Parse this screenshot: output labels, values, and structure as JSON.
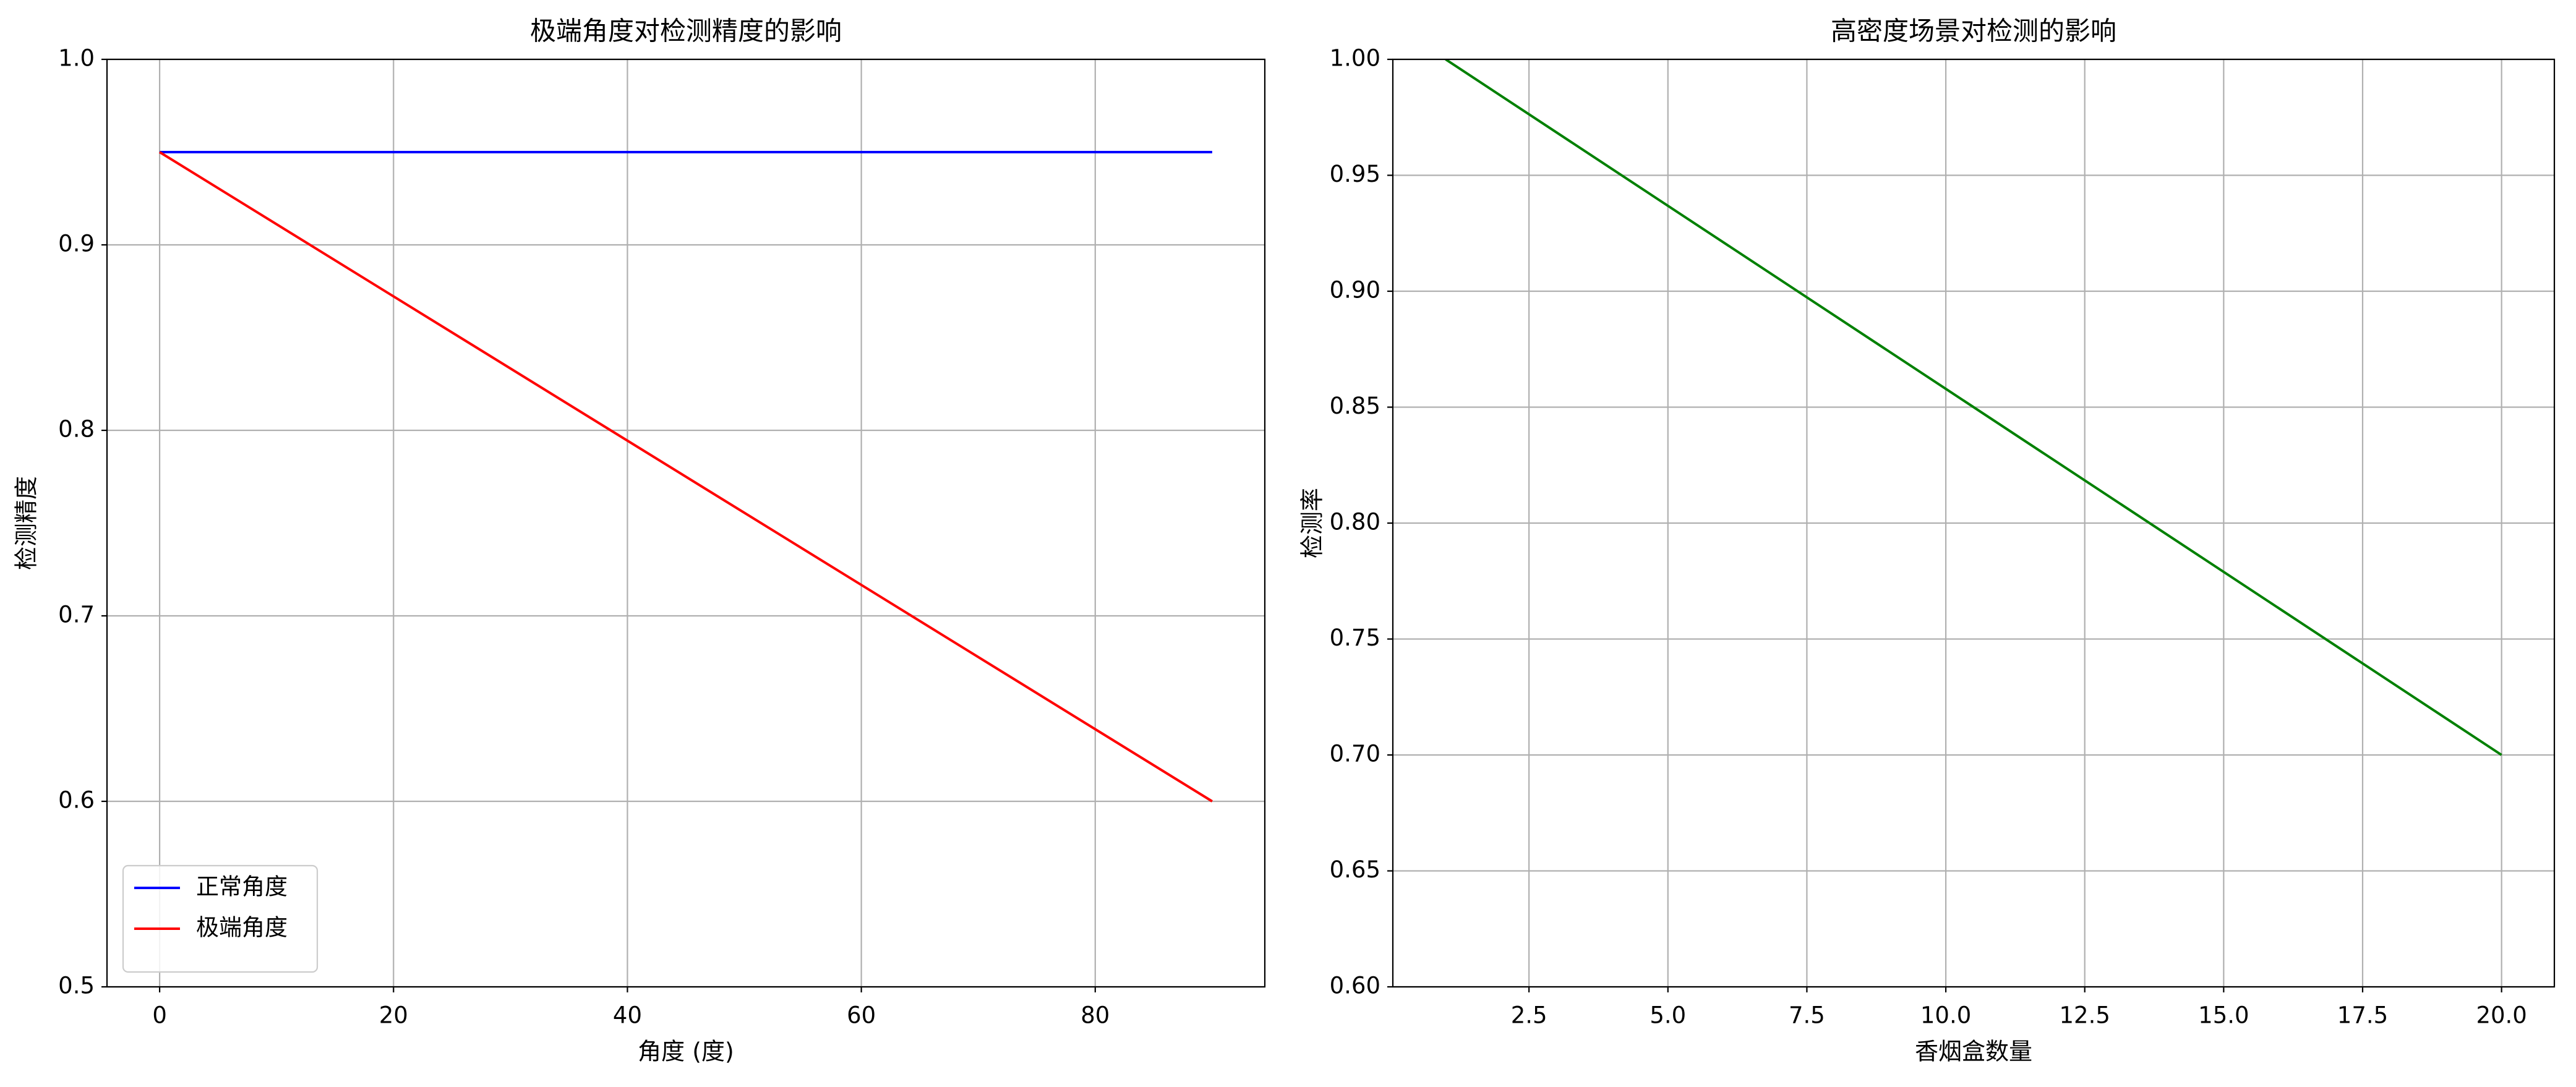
{
  "chart_data": [
    {
      "type": "line",
      "title": "极端角度对检测精度的影响",
      "x_label": "角度 (度)",
      "y_label": "检测精度",
      "x": [
        0,
        90
      ],
      "series": [
        {
          "name": "正常角度",
          "color": "#0000ff",
          "values": [
            0.95,
            0.95
          ]
        },
        {
          "name": "极端角度",
          "color": "#ff0000",
          "values": [
            0.95,
            0.6
          ]
        }
      ],
      "xlim": [
        -4.5,
        94.5
      ],
      "xticks": [
        0,
        20,
        40,
        60,
        80
      ],
      "ylim": [
        0.5,
        1.0
      ],
      "yticks": [
        0.5,
        0.6,
        0.7,
        0.8,
        0.9,
        {
          "value": 1,
          "label": "1.0"
        }
      ],
      "grid": true,
      "legend": "lower-left"
    },
    {
      "type": "line",
      "title": "高密度场景对检测的影响",
      "x_label": "香烟盒数量",
      "y_label": "检测率",
      "x": [
        1,
        20
      ],
      "series": [
        {
          "color": "#008000",
          "values": [
            1.0,
            0.7
          ]
        }
      ],
      "xlim": [
        0.05,
        20.95
      ],
      "xticks": [
        2.5,
        {
          "value": 5,
          "label": "5.0"
        },
        7.5,
        {
          "value": 10,
          "label": "10.0"
        },
        12.5,
        {
          "value": 15,
          "label": "15.0"
        },
        17.5,
        {
          "value": 20,
          "label": "20.0"
        }
      ],
      "ylim": [
        0.6,
        1.0
      ],
      "yticks": [
        {
          "value": 0.6,
          "label": "0.60"
        },
        0.65,
        {
          "value": 0.7,
          "label": "0.70"
        },
        0.75,
        {
          "value": 0.8,
          "label": "0.80"
        },
        0.85,
        {
          "value": 0.9,
          "label": "0.90"
        },
        0.95,
        {
          "value": 1,
          "label": "1.00"
        }
      ],
      "grid": true
    }
  ]
}
